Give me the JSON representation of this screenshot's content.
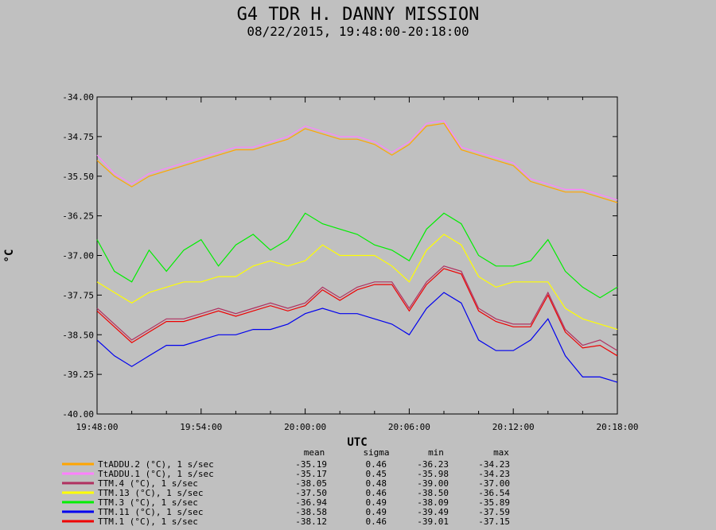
{
  "chart_data": {
    "type": "line",
    "title": "G4 TDR H. DANNY MISSION",
    "subtitle": "08/22/2015, 19:48:00-20:18:00",
    "xlabel": "UTC",
    "ylabel": "°C",
    "xlim": [
      "19:48:00",
      "20:18:00"
    ],
    "ylim": [
      -40.0,
      -34.0
    ],
    "x_ticks": [
      "19:48:00",
      "19:54:00",
      "20:00:00",
      "20:06:00",
      "20:12:00",
      "20:18:00"
    ],
    "y_ticks": [
      "-34.00",
      "-34.75",
      "-35.50",
      "-36.25",
      "-37.00",
      "-37.75",
      "-38.50",
      "-39.25",
      "-40.00"
    ],
    "stats_headers": [
      "mean",
      "sigma",
      "min",
      "max"
    ],
    "series": [
      {
        "name": "TtADDU.2 (°C), 1 s/sec",
        "color": "#ffa500",
        "stats": [
          "-35.19",
          "0.46",
          "-36.23",
          "-34.23"
        ],
        "points": [
          [
            0,
            -35.2
          ],
          [
            1,
            -35.5
          ],
          [
            2,
            -35.7
          ],
          [
            3,
            -35.5
          ],
          [
            4,
            -35.4
          ],
          [
            5,
            -35.3
          ],
          [
            6,
            -35.2
          ],
          [
            7,
            -35.1
          ],
          [
            8,
            -35.0
          ],
          [
            9,
            -35.0
          ],
          [
            10,
            -34.9
          ],
          [
            11,
            -34.8
          ],
          [
            12,
            -34.6
          ],
          [
            13,
            -34.7
          ],
          [
            14,
            -34.8
          ],
          [
            15,
            -34.8
          ],
          [
            16,
            -34.9
          ],
          [
            17,
            -35.1
          ],
          [
            18,
            -34.9
          ],
          [
            19,
            -34.55
          ],
          [
            20,
            -34.5
          ],
          [
            21,
            -35.0
          ],
          [
            22,
            -35.1
          ],
          [
            23,
            -35.2
          ],
          [
            24,
            -35.3
          ],
          [
            25,
            -35.6
          ],
          [
            26,
            -35.7
          ],
          [
            27,
            -35.8
          ],
          [
            28,
            -35.8
          ],
          [
            29,
            -35.9
          ],
          [
            30,
            -36.0
          ]
        ]
      },
      {
        "name": "TtADDU.1 (°C), 1 s/sec",
        "color": "#ff80ff",
        "stats": [
          "-35.17",
          "0.45",
          "-35.98",
          "-34.23"
        ],
        "points": [
          [
            0,
            -35.1
          ],
          [
            1,
            -35.45
          ],
          [
            2,
            -35.65
          ],
          [
            3,
            -35.45
          ],
          [
            4,
            -35.35
          ],
          [
            5,
            -35.25
          ],
          [
            6,
            -35.15
          ],
          [
            7,
            -35.05
          ],
          [
            8,
            -34.95
          ],
          [
            9,
            -34.95
          ],
          [
            10,
            -34.85
          ],
          [
            11,
            -34.75
          ],
          [
            12,
            -34.55
          ],
          [
            13,
            -34.65
          ],
          [
            14,
            -34.75
          ],
          [
            15,
            -34.75
          ],
          [
            16,
            -34.85
          ],
          [
            17,
            -35.05
          ],
          [
            18,
            -34.85
          ],
          [
            19,
            -34.5
          ],
          [
            20,
            -34.45
          ],
          [
            21,
            -34.95
          ],
          [
            22,
            -35.05
          ],
          [
            23,
            -35.15
          ],
          [
            24,
            -35.25
          ],
          [
            25,
            -35.55
          ],
          [
            26,
            -35.65
          ],
          [
            27,
            -35.75
          ],
          [
            28,
            -35.75
          ],
          [
            29,
            -35.85
          ],
          [
            30,
            -35.95
          ]
        ]
      },
      {
        "name": "TTM.4 (°C), 1 s/sec",
        "color": "#b03060",
        "stats": [
          "-38.05",
          "0.48",
          "-39.00",
          "-37.00"
        ],
        "points": [
          [
            0,
            -38.0
          ],
          [
            1,
            -38.3
          ],
          [
            2,
            -38.6
          ],
          [
            3,
            -38.4
          ],
          [
            4,
            -38.2
          ],
          [
            5,
            -38.2
          ],
          [
            6,
            -38.1
          ],
          [
            7,
            -38.0
          ],
          [
            8,
            -38.1
          ],
          [
            9,
            -38.0
          ],
          [
            10,
            -37.9
          ],
          [
            11,
            -38.0
          ],
          [
            12,
            -37.9
          ],
          [
            13,
            -37.6
          ],
          [
            14,
            -37.8
          ],
          [
            15,
            -37.6
          ],
          [
            16,
            -37.5
          ],
          [
            17,
            -37.5
          ],
          [
            18,
            -38.0
          ],
          [
            19,
            -37.5
          ],
          [
            20,
            -37.2
          ],
          [
            21,
            -37.3
          ],
          [
            22,
            -38.0
          ],
          [
            23,
            -38.2
          ],
          [
            24,
            -38.3
          ],
          [
            25,
            -38.3
          ],
          [
            26,
            -37.7
          ],
          [
            27,
            -38.4
          ],
          [
            28,
            -38.7
          ],
          [
            29,
            -38.6
          ],
          [
            30,
            -38.8
          ]
        ]
      },
      {
        "name": "TTM.13 (°C), 1 s/sec",
        "color": "#ffff00",
        "stats": [
          "-37.50",
          "0.46",
          "-38.50",
          "-36.54"
        ],
        "points": [
          [
            0,
            -37.5
          ],
          [
            1,
            -37.7
          ],
          [
            2,
            -37.9
          ],
          [
            3,
            -37.7
          ],
          [
            4,
            -37.6
          ],
          [
            5,
            -37.5
          ],
          [
            6,
            -37.5
          ],
          [
            7,
            -37.4
          ],
          [
            8,
            -37.4
          ],
          [
            9,
            -37.2
          ],
          [
            10,
            -37.1
          ],
          [
            11,
            -37.2
          ],
          [
            12,
            -37.1
          ],
          [
            13,
            -36.8
          ],
          [
            14,
            -37.0
          ],
          [
            15,
            -37.0
          ],
          [
            16,
            -37.0
          ],
          [
            17,
            -37.2
          ],
          [
            18,
            -37.5
          ],
          [
            19,
            -36.9
          ],
          [
            20,
            -36.6
          ],
          [
            21,
            -36.8
          ],
          [
            22,
            -37.4
          ],
          [
            23,
            -37.6
          ],
          [
            24,
            -37.5
          ],
          [
            25,
            -37.5
          ],
          [
            26,
            -37.5
          ],
          [
            27,
            -38.0
          ],
          [
            28,
            -38.2
          ],
          [
            29,
            -38.3
          ],
          [
            30,
            -38.4
          ]
        ]
      },
      {
        "name": "TTM.3 (°C), 1 s/sec",
        "color": "#00ee00",
        "stats": [
          "-36.94",
          "0.49",
          "-38.09",
          "-35.89"
        ],
        "points": [
          [
            0,
            -36.7
          ],
          [
            1,
            -37.3
          ],
          [
            2,
            -37.5
          ],
          [
            3,
            -36.9
          ],
          [
            4,
            -37.3
          ],
          [
            5,
            -36.9
          ],
          [
            6,
            -36.7
          ],
          [
            7,
            -37.2
          ],
          [
            8,
            -36.8
          ],
          [
            9,
            -36.6
          ],
          [
            10,
            -36.9
          ],
          [
            11,
            -36.7
          ],
          [
            12,
            -36.2
          ],
          [
            13,
            -36.4
          ],
          [
            14,
            -36.5
          ],
          [
            15,
            -36.6
          ],
          [
            16,
            -36.8
          ],
          [
            17,
            -36.9
          ],
          [
            18,
            -37.1
          ],
          [
            19,
            -36.5
          ],
          [
            20,
            -36.2
          ],
          [
            21,
            -36.4
          ],
          [
            22,
            -37.0
          ],
          [
            23,
            -37.2
          ],
          [
            24,
            -37.2
          ],
          [
            25,
            -37.1
          ],
          [
            26,
            -36.7
          ],
          [
            27,
            -37.3
          ],
          [
            28,
            -37.6
          ],
          [
            29,
            -37.8
          ],
          [
            30,
            -37.6
          ]
        ]
      },
      {
        "name": "TTM.11 (°C), 1 s/sec",
        "color": "#0000ee",
        "stats": [
          "-38.58",
          "0.49",
          "-39.49",
          "-37.59"
        ],
        "points": [
          [
            0,
            -38.6
          ],
          [
            1,
            -38.9
          ],
          [
            2,
            -39.1
          ],
          [
            3,
            -38.9
          ],
          [
            4,
            -38.7
          ],
          [
            5,
            -38.7
          ],
          [
            6,
            -38.6
          ],
          [
            7,
            -38.5
          ],
          [
            8,
            -38.5
          ],
          [
            9,
            -38.4
          ],
          [
            10,
            -38.4
          ],
          [
            11,
            -38.3
          ],
          [
            12,
            -38.1
          ],
          [
            13,
            -38.0
          ],
          [
            14,
            -38.1
          ],
          [
            15,
            -38.1
          ],
          [
            16,
            -38.2
          ],
          [
            17,
            -38.3
          ],
          [
            18,
            -38.5
          ],
          [
            19,
            -38.0
          ],
          [
            20,
            -37.7
          ],
          [
            21,
            -37.9
          ],
          [
            22,
            -38.6
          ],
          [
            23,
            -38.8
          ],
          [
            24,
            -38.8
          ],
          [
            25,
            -38.6
          ],
          [
            26,
            -38.2
          ],
          [
            27,
            -38.9
          ],
          [
            28,
            -39.3
          ],
          [
            29,
            -39.3
          ],
          [
            30,
            -39.4
          ]
        ]
      },
      {
        "name": "TTM.1 (°C), 1 s/sec",
        "color": "#ee0000",
        "stats": [
          "-38.12",
          "0.46",
          "-39.01",
          "-37.15"
        ],
        "points": [
          [
            0,
            -38.05
          ],
          [
            1,
            -38.35
          ],
          [
            2,
            -38.65
          ],
          [
            3,
            -38.45
          ],
          [
            4,
            -38.25
          ],
          [
            5,
            -38.25
          ],
          [
            6,
            -38.15
          ],
          [
            7,
            -38.05
          ],
          [
            8,
            -38.15
          ],
          [
            9,
            -38.05
          ],
          [
            10,
            -37.95
          ],
          [
            11,
            -38.05
          ],
          [
            12,
            -37.95
          ],
          [
            13,
            -37.65
          ],
          [
            14,
            -37.85
          ],
          [
            15,
            -37.65
          ],
          [
            16,
            -37.55
          ],
          [
            17,
            -37.55
          ],
          [
            18,
            -38.05
          ],
          [
            19,
            -37.55
          ],
          [
            20,
            -37.25
          ],
          [
            21,
            -37.35
          ],
          [
            22,
            -38.05
          ],
          [
            23,
            -38.25
          ],
          [
            24,
            -38.35
          ],
          [
            25,
            -38.35
          ],
          [
            26,
            -37.75
          ],
          [
            27,
            -38.45
          ],
          [
            28,
            -38.75
          ],
          [
            29,
            -38.7
          ],
          [
            30,
            -38.9
          ]
        ]
      }
    ]
  }
}
